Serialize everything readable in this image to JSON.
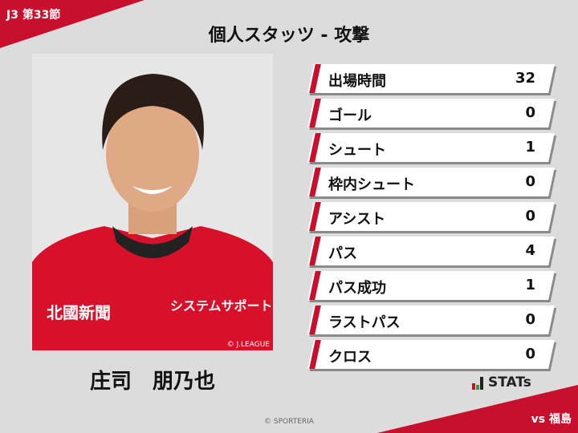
{
  "header": {
    "round": "J3 第33節",
    "title": "個人スタッツ - 攻撃"
  },
  "player": {
    "name": "庄司　朋乃也",
    "photo_credit": "© J.LEAGUE",
    "shirt_sponsors": [
      "北國新聞",
      "システムサポート"
    ]
  },
  "stats": [
    {
      "label": "出場時間",
      "value": "32"
    },
    {
      "label": "ゴール",
      "value": "0"
    },
    {
      "label": "シュート",
      "value": "1"
    },
    {
      "label": "枠内シュート",
      "value": "0"
    },
    {
      "label": "アシスト",
      "value": "0"
    },
    {
      "label": "パス",
      "value": "4"
    },
    {
      "label": "パス成功",
      "value": "1"
    },
    {
      "label": "ラストパス",
      "value": "0"
    },
    {
      "label": "クロス",
      "value": "0"
    }
  ],
  "logo": {
    "text": "STATs"
  },
  "footer": {
    "copyright": "© SPORTERIA",
    "opponent": "vs 福島"
  },
  "colors": {
    "accent": "#c8102e",
    "background": "#dcdcdc"
  }
}
